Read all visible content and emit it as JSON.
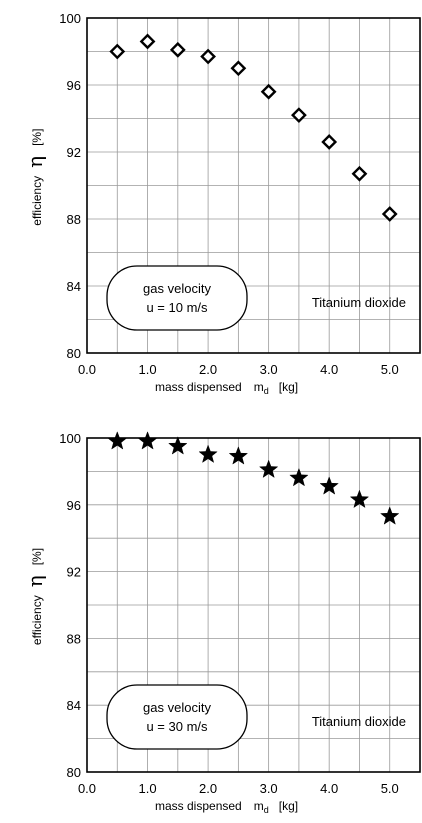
{
  "chart_data": [
    {
      "type": "scatter",
      "marker": "diamond",
      "x": [
        0.5,
        1.0,
        1.5,
        2.0,
        2.5,
        3.0,
        3.5,
        4.0,
        4.5,
        5.0
      ],
      "y": [
        98.0,
        98.6,
        98.1,
        97.7,
        97.0,
        95.6,
        94.2,
        92.6,
        90.7,
        88.3
      ],
      "xlim": [
        0.0,
        5.5
      ],
      "ylim": [
        80,
        100
      ],
      "xticks": [
        "0.0",
        "1.0",
        "2.0",
        "3.0",
        "4.0",
        "5.0"
      ],
      "yticks": [
        "80",
        "84",
        "88",
        "92",
        "96",
        "100"
      ],
      "xlabel_text": "mass dispensed",
      "xlabel_symbol": "m",
      "xlabel_subscript": "d",
      "xlabel_unit": "[kg]",
      "ylabel_text": "efficiency",
      "ylabel_symbol": "η",
      "ylabel_unit": "[%]",
      "grid": true,
      "annotation_box_line1": "gas velocity",
      "annotation_box_line2": "u = 10 m/s",
      "annotation_text": "Titanium dioxide"
    },
    {
      "type": "scatter",
      "marker": "star",
      "x": [
        0.5,
        1.0,
        1.5,
        2.0,
        2.5,
        3.0,
        3.5,
        4.0,
        4.5,
        5.0
      ],
      "y": [
        99.8,
        99.8,
        99.5,
        99.0,
        98.9,
        98.1,
        97.6,
        97.1,
        96.3,
        95.3
      ],
      "xlim": [
        0.0,
        5.5
      ],
      "ylim": [
        80,
        100
      ],
      "xticks": [
        "0.0",
        "1.0",
        "2.0",
        "3.0",
        "4.0",
        "5.0"
      ],
      "yticks": [
        "80",
        "84",
        "88",
        "92",
        "96",
        "100"
      ],
      "xlabel_text": "mass dispensed",
      "xlabel_symbol": "m",
      "xlabel_subscript": "d",
      "xlabel_unit": "[kg]",
      "ylabel_text": "efficiency",
      "ylabel_symbol": "η",
      "ylabel_unit": "[%]",
      "grid": true,
      "annotation_box_line1": "gas velocity",
      "annotation_box_line2": "u = 30 m/s",
      "annotation_text": "Titanium dioxide"
    }
  ]
}
